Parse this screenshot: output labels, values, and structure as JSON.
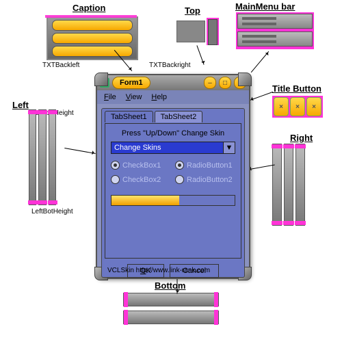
{
  "labels": {
    "caption": "Caption",
    "top": "Top",
    "mainmenu": "MainMenu bar",
    "titlebutton": "Title Button",
    "left": "Left",
    "right": "Right",
    "bottom": "Bottom",
    "txtbackleft": "TXTBackleft",
    "txtbackright": "TXTBackright",
    "lefttop": "LeftTopHeight",
    "leftbot": "LeftBotHeight"
  },
  "window": {
    "title": "Form1",
    "menu": [
      "File",
      "View",
      "Help"
    ],
    "tabs": [
      "TabSheet1",
      "TabSheet2"
    ],
    "prompt": "Press \"Up/Down\" Change Skin",
    "combo": "Change Skins",
    "checks": [
      "CheckBox1",
      "CheckBox2"
    ],
    "radios": [
      "RadioButton1",
      "RadioButton2"
    ],
    "buttons": {
      "ok": "OK",
      "cancel": "Cancel"
    },
    "footer": "VCLSkin http://www.link-rank.com",
    "progress_pct": 55
  },
  "colors": {
    "accent": "#f7a800",
    "form_bg": "#6b77c4",
    "highlight": "#ff33d7",
    "combo_bg": "#2a3bd0"
  }
}
